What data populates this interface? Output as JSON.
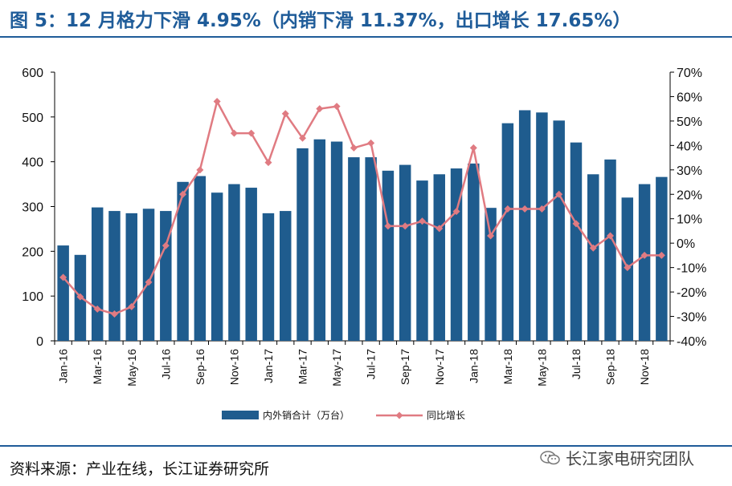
{
  "header": {
    "title": "图 5：12 月格力下滑 4.95%（内销下滑 11.37%，出口增长 17.65%）"
  },
  "footer": {
    "source": "资料来源：产业在线，长江证券研究所",
    "watermark": "长江家电研究团队"
  },
  "colors": {
    "bar": "#1F5C8E",
    "line": "#E07B82",
    "title": "#1F5C99"
  },
  "chart_data": {
    "type": "bar",
    "categories": [
      "Jan-16",
      "Feb-16",
      "Mar-16",
      "Apr-16",
      "May-16",
      "Jun-16",
      "Jul-16",
      "Aug-16",
      "Sep-16",
      "Oct-16",
      "Nov-16",
      "Dec-16",
      "Jan-17",
      "Feb-17",
      "Mar-17",
      "Apr-17",
      "May-17",
      "Jun-17",
      "Jul-17",
      "Aug-17",
      "Sep-17",
      "Oct-17",
      "Nov-17",
      "Dec-17",
      "Jan-18",
      "Feb-18",
      "Mar-18",
      "Apr-18",
      "May-18",
      "Jun-18",
      "Jul-18",
      "Aug-18",
      "Sep-18",
      "Oct-18",
      "Nov-18",
      "Dec-18"
    ],
    "x_tick_labels": [
      "Jan-16",
      "Mar-16",
      "May-16",
      "Jul-16",
      "Sep-16",
      "Nov-16",
      "Jan-17",
      "Mar-17",
      "May-17",
      "Jul-17",
      "Sep-17",
      "Nov-17",
      "Jan-18",
      "Mar-18",
      "May-18",
      "Jul-18",
      "Sep-18",
      "Nov-18"
    ],
    "series": [
      {
        "name": "内外销合计（万台）",
        "type": "bar",
        "axis": "left",
        "values": [
          213,
          192,
          298,
          290,
          285,
          295,
          290,
          355,
          368,
          331,
          350,
          342,
          285,
          290,
          430,
          450,
          445,
          410,
          410,
          380,
          393,
          358,
          372,
          385,
          396,
          297,
          486,
          515,
          510,
          492,
          443,
          372,
          405,
          320,
          350,
          366
        ]
      },
      {
        "name": "同比增长",
        "type": "line",
        "axis": "right",
        "unit": "%",
        "values": [
          -14,
          -22,
          -27,
          -29,
          -26,
          -16,
          -1,
          20,
          30,
          58,
          45,
          45,
          33,
          53,
          43,
          55,
          56,
          39,
          41,
          7,
          7,
          9,
          6,
          13,
          39,
          3,
          14,
          14,
          14,
          20,
          8,
          -2,
          3,
          -10,
          -5,
          -5
        ]
      }
    ],
    "y_left": {
      "ylim": [
        0,
        600
      ],
      "ticks": [
        "0",
        "100",
        "200",
        "300",
        "400",
        "500",
        "600"
      ]
    },
    "y_right": {
      "ylim": [
        -40,
        70
      ],
      "ticks": [
        "-40%",
        "-30%",
        "-20%",
        "-10%",
        "0%",
        "10%",
        "20%",
        "30%",
        "40%",
        "50%",
        "60%",
        "70%"
      ]
    },
    "legend_position": "bottom"
  }
}
